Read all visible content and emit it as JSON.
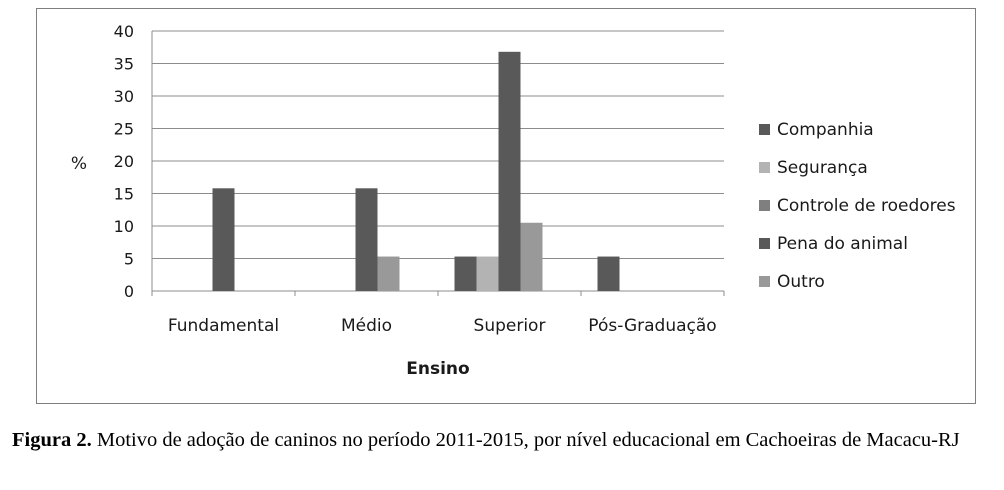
{
  "chart_data": {
    "type": "bar",
    "categories": [
      "Fundamental",
      "Médio",
      "Superior",
      "Pós-Graduação"
    ],
    "series": [
      {
        "name": "Companhia",
        "color": "#595959",
        "values": [
          15.8,
          15.8,
          36.8,
          0
        ]
      },
      {
        "name": "Segurança",
        "color": "#b3b3b3",
        "values": [
          0,
          0,
          5.3,
          0
        ]
      },
      {
        "name": "Controle de roedores",
        "color": "#7f7f7f",
        "values": [
          0,
          0,
          0,
          0
        ]
      },
      {
        "name": "Pena do animal",
        "color": "#595959",
        "values": [
          0,
          0,
          5.3,
          5.3
        ]
      },
      {
        "name": "Outro",
        "color": "#999999",
        "values": [
          0,
          5.3,
          10.5,
          0
        ]
      }
    ],
    "bar_order": [
      "Pena do animal",
      "Segurança",
      "Companhia",
      "Outro",
      "Controle de roedores"
    ],
    "title": "",
    "xlabel": "Ensino",
    "ylabel": "%",
    "ylim": [
      0,
      40
    ],
    "yticks": [
      0,
      5,
      10,
      15,
      20,
      25,
      30,
      35,
      40
    ],
    "grid": true,
    "legend": "right"
  },
  "caption": {
    "label": "Figura 2.",
    "text": " Motivo de adoção de caninos no período 2011-2015, por nível educacional em Cachoeiras de Macacu-RJ"
  }
}
